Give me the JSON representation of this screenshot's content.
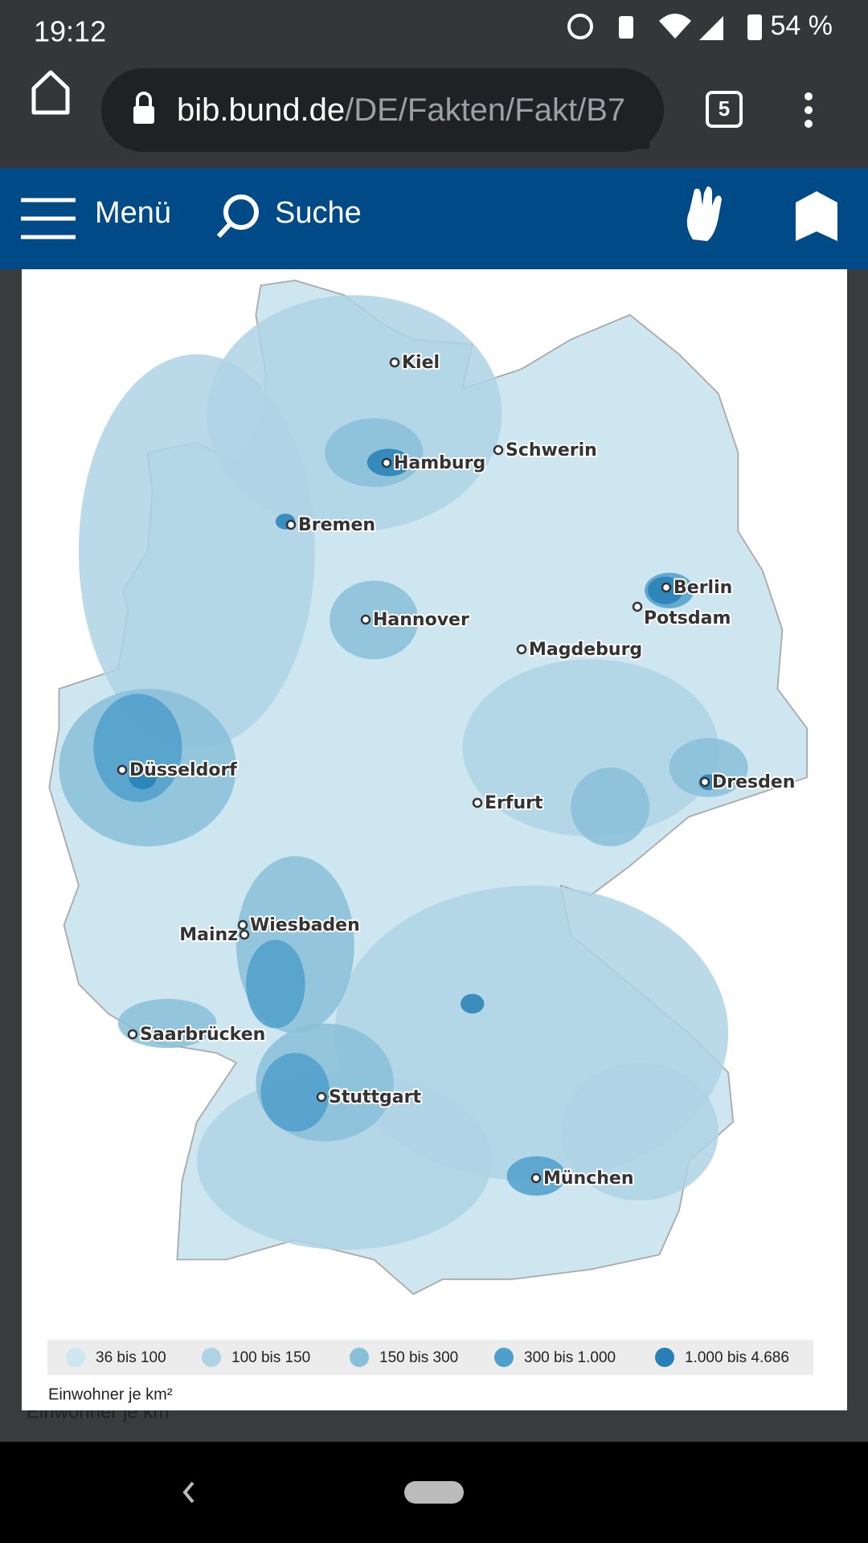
{
  "status_bar": {
    "time": "19:12",
    "battery": "54 %"
  },
  "browser": {
    "url_host": "bib.bund.de",
    "url_path": "/DE/Fakten/Fakt/B7",
    "tab_count": "5"
  },
  "site_nav": {
    "menu": "Menü",
    "search": "Suche"
  },
  "map": {
    "cities": [
      "Kiel",
      "Hamburg",
      "Schwerin",
      "Bremen",
      "Berlin",
      "Potsdam",
      "Hannover",
      "Magdeburg",
      "Düsseldorf",
      "Dresden",
      "Erfurt",
      "Wiesbaden",
      "Mainz",
      "Saarbrücken",
      "Stuttgart",
      "München"
    ],
    "legend": [
      {
        "label": "36 bis 100",
        "color": "#cde6f0"
      },
      {
        "label": "100 bis 150",
        "color": "#afd3e5"
      },
      {
        "label": "150 bis 300",
        "color": "#88bfd9"
      },
      {
        "label": "300 bis 1.000",
        "color": "#4f9fcb"
      },
      {
        "label": "1.000 bis 4.686",
        "color": "#2680b5"
      }
    ],
    "unit": "Einwohner je km²"
  },
  "background_caption": "Einwohner je km"
}
